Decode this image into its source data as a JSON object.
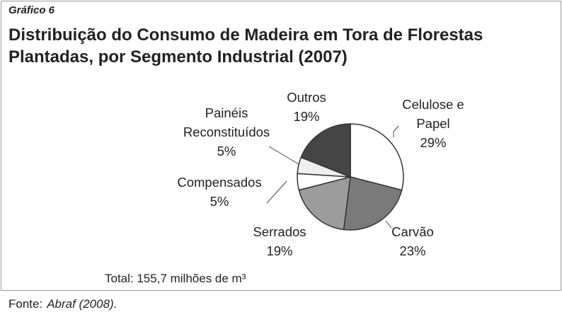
{
  "chart_data": {
    "type": "pie",
    "kicker": "Gráfico 6",
    "title": "Distribuição do Consumo de Madeira em Tora de Florestas Plantadas, por Segmento Industrial (2007)",
    "categories": [
      "Celulose e Papel",
      "Carvão",
      "Serrados",
      "Compensados",
      "Painéis Reconstituídos",
      "Outros"
    ],
    "values": [
      29,
      23,
      19,
      5,
      5,
      19
    ],
    "value_labels": [
      "29%",
      "23%",
      "19%",
      "5%",
      "5%",
      "19%"
    ],
    "colors": [
      "#ffffff",
      "#7a7a7a",
      "#9c9c9c",
      "#ffffff",
      "#eeeeee",
      "#454545"
    ],
    "annotation": "Total: 155,7 milhões de m³",
    "source": {
      "label": "Fonte:",
      "text": "Abraf (2008)."
    }
  }
}
